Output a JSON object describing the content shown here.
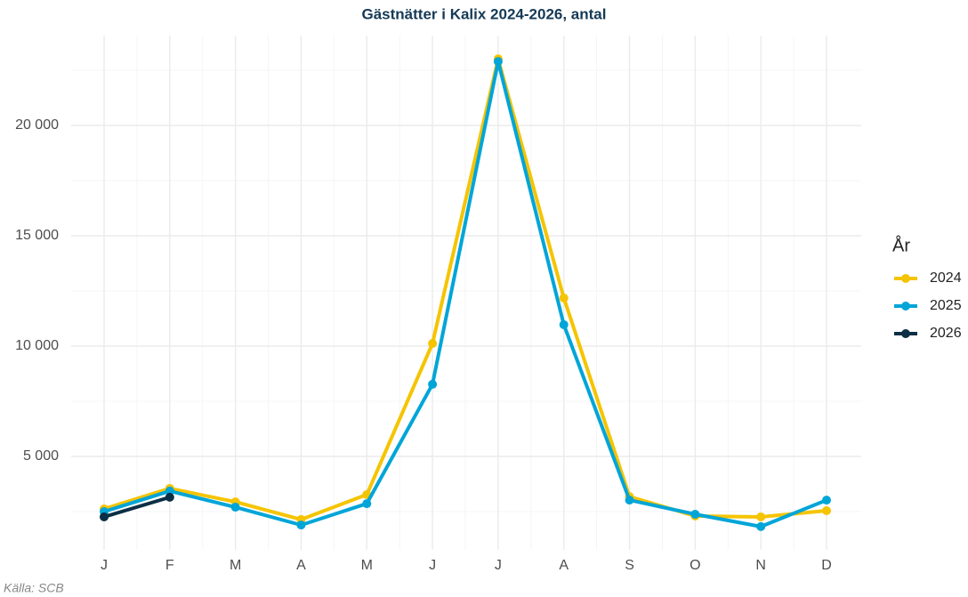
{
  "chart_data": {
    "type": "line",
    "title": "Gästnätter i Kalix 2024-2026, antal",
    "categories": [
      "J",
      "F",
      "M",
      "A",
      "M",
      "J",
      "J",
      "A",
      "S",
      "O",
      "N",
      "D"
    ],
    "series": [
      {
        "name": "2024",
        "color": "#f5c400",
        "values": [
          2620,
          3550,
          2940,
          2140,
          3270,
          10120,
          23020,
          12180,
          3180,
          2300,
          2260,
          2540
        ]
      },
      {
        "name": "2025",
        "color": "#00a5d8",
        "values": [
          2500,
          3430,
          2700,
          1890,
          2860,
          8270,
          22900,
          10970,
          3020,
          2380,
          1820,
          3020
        ]
      },
      {
        "name": "2026",
        "color": "#0c2f45",
        "values": [
          2260,
          3150,
          null,
          null,
          null,
          null,
          null,
          null,
          null,
          null,
          null,
          null
        ]
      }
    ],
    "ylim": [
      766,
      24073
    ],
    "yticks": [
      {
        "value": 5000,
        "label": "5 000"
      },
      {
        "value": 10000,
        "label": "10 000"
      },
      {
        "value": 15000,
        "label": "15 000"
      },
      {
        "value": 20000,
        "label": "20 000"
      }
    ],
    "legend_title": "År",
    "legend": "right",
    "caption": "Källa: SCB",
    "grid": true
  }
}
